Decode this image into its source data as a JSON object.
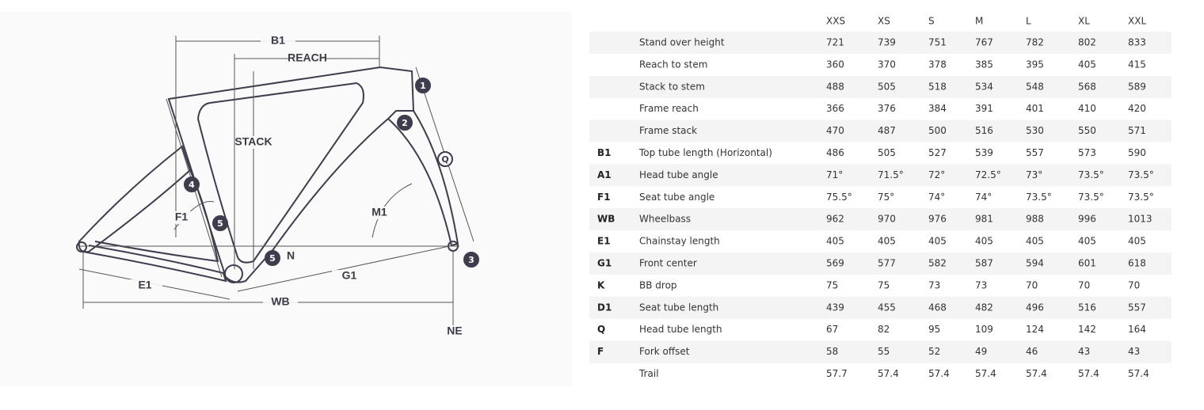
{
  "diagram": {
    "labels": [
      "B1",
      "REACH",
      "STACK",
      "F1",
      "M1",
      "E1",
      "WB",
      "G1",
      "N",
      "NE"
    ],
    "markers": [
      "Q",
      "1",
      "2",
      "3",
      "4",
      "5",
      "5"
    ]
  },
  "table": {
    "sizes": [
      "XXS",
      "XS",
      "S",
      "M",
      "L",
      "XL",
      "XXL"
    ],
    "rows": [
      {
        "name": "Stand over height",
        "values": [
          721,
          739,
          751,
          767,
          782,
          802,
          833
        ]
      },
      {
        "name": "Reach to stem",
        "values": [
          360,
          370,
          378,
          385,
          395,
          405,
          415
        ]
      },
      {
        "name": "Stack to stem",
        "values": [
          488,
          505,
          518,
          534,
          548,
          568,
          589
        ]
      },
      {
        "name": "Frame reach",
        "values": [
          366,
          376,
          384,
          391,
          401,
          410,
          420
        ]
      },
      {
        "name": "Frame stack",
        "values": [
          470,
          487,
          500,
          516,
          530,
          550,
          571
        ]
      },
      {
        "code": "B1",
        "name": "Top tube length (Horizontal)",
        "values": [
          486,
          505,
          527,
          539,
          557,
          573,
          590
        ]
      },
      {
        "code": "A1",
        "name": "Head tube angle",
        "values": [
          "71°",
          "71.5°",
          "72°",
          "72.5°",
          "73°",
          "73.5°",
          "73.5°"
        ]
      },
      {
        "code": "F1",
        "name": "Seat tube angle",
        "values": [
          "75.5°",
          "75°",
          "74°",
          "74°",
          "73.5°",
          "73.5°",
          "73.5°"
        ]
      },
      {
        "code": "WB",
        "name": "Wheelbass",
        "values": [
          962,
          970,
          976,
          981,
          988,
          996,
          1013
        ]
      },
      {
        "code": "E1",
        "name": "Chainstay length",
        "values": [
          405,
          405,
          405,
          405,
          405,
          405,
          405
        ]
      },
      {
        "code": "G1",
        "name": "Front center",
        "values": [
          569,
          577,
          582,
          587,
          594,
          601,
          618
        ]
      },
      {
        "code": "K",
        "name": "BB drop",
        "values": [
          75,
          75,
          73,
          73,
          70,
          70,
          70
        ]
      },
      {
        "code": "D1",
        "name": "Seat tube length",
        "values": [
          439,
          455,
          468,
          482,
          496,
          516,
          557
        ]
      },
      {
        "code": "Q",
        "name": "Head tube length",
        "values": [
          67,
          82,
          95,
          109,
          124,
          142,
          164
        ]
      },
      {
        "code": "F",
        "name": "Fork offset",
        "values": [
          58,
          55,
          52,
          49,
          46,
          43,
          43
        ]
      },
      {
        "name": "Trail",
        "values": [
          57.7,
          57.4,
          57.4,
          57.4,
          57.4,
          57.4,
          57.4
        ]
      }
    ]
  }
}
